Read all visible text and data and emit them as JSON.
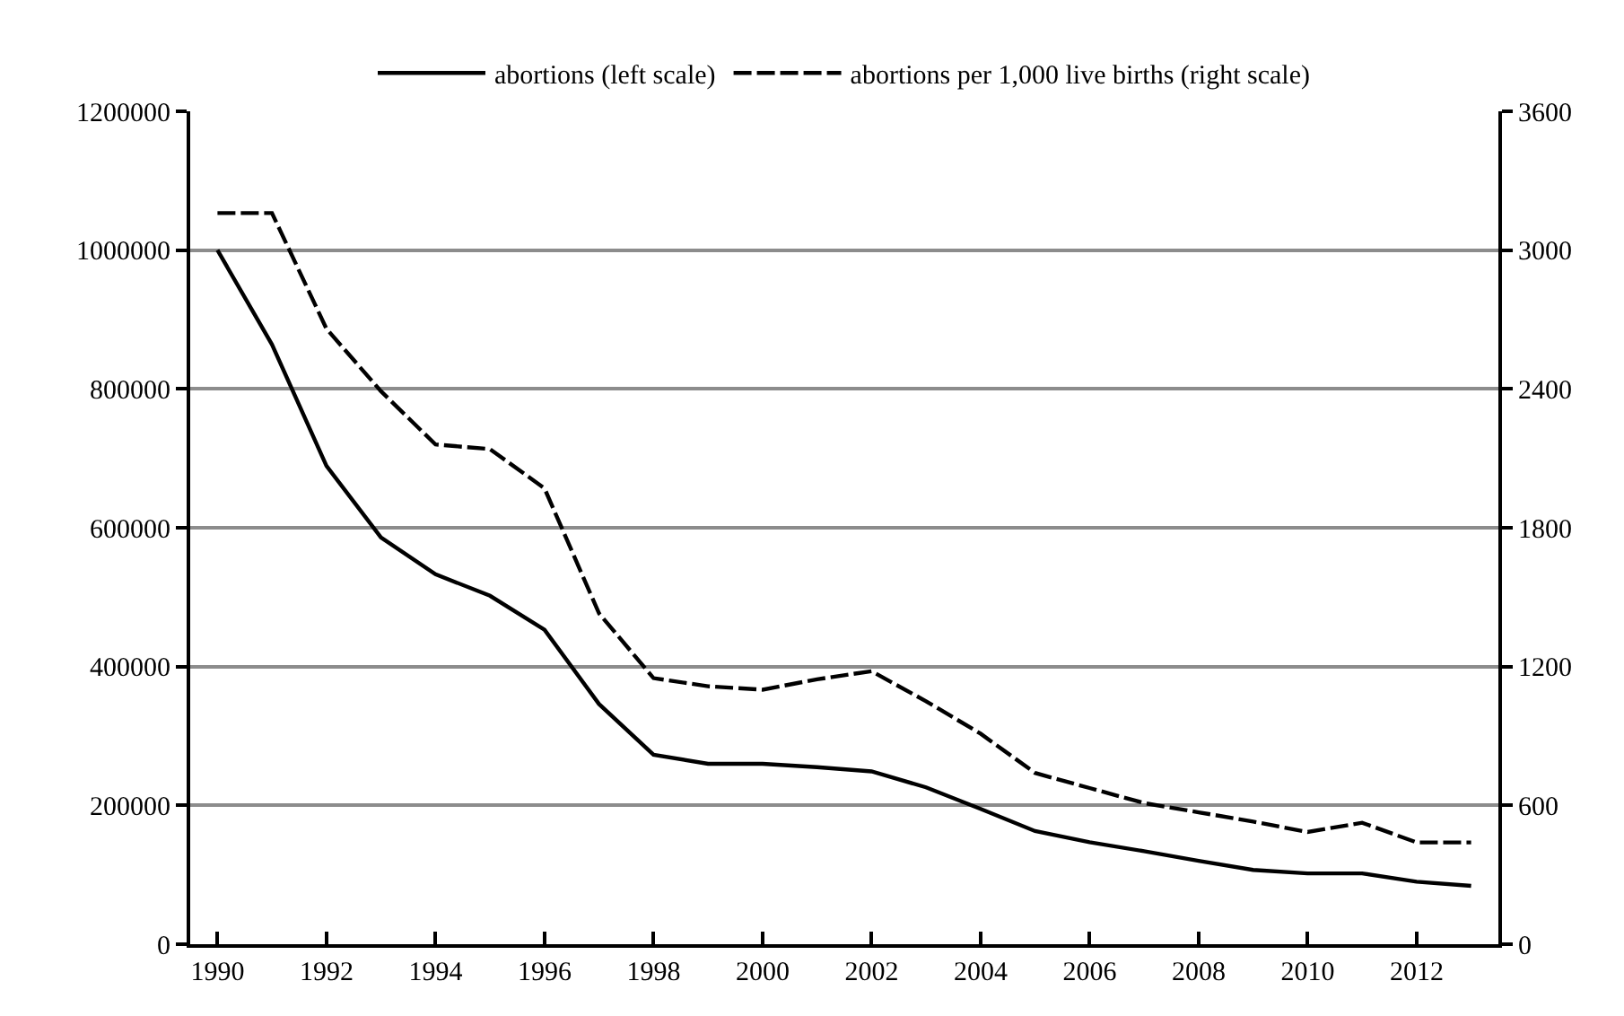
{
  "chart_data": {
    "type": "line",
    "x": [
      1990,
      1991,
      1992,
      1993,
      1994,
      1995,
      1996,
      1997,
      1998,
      1999,
      2000,
      2001,
      2002,
      2003,
      2004,
      2005,
      2006,
      2007,
      2008,
      2009,
      2010,
      2011,
      2012,
      2013
    ],
    "series": [
      {
        "name": "abortions (left scale)",
        "color": "#000000",
        "line_style": "solid",
        "values": [
          1000000,
          864000,
          689000,
          586000,
          533000,
          502000,
          453000,
          346000,
          273000,
          260000,
          260000,
          255000,
          249000,
          226000,
          195000,
          163000,
          147000,
          134000,
          120000,
          107000,
          102000,
          102000,
          90000,
          84000
        ]
      },
      {
        "name": "abortions per 1,000 live births (right scale)",
        "color": "#000000",
        "line_style": "dashed",
        "axis": "y2",
        "values": [
          3160,
          3160,
          2660,
          2390,
          2160,
          2140,
          1970,
          1430,
          1150,
          1115,
          1100,
          1145,
          1180,
          1050,
          910,
          740,
          675,
          610,
          570,
          530,
          485,
          525,
          440,
          440
        ]
      }
    ],
    "xlim": [
      1989.5,
      2013.5
    ],
    "xticks": [
      1990,
      1992,
      1994,
      1996,
      1998,
      2000,
      2002,
      2004,
      2006,
      2008,
      2010,
      2012
    ],
    "ylim": [
      0,
      1200000
    ],
    "yticks": [
      0,
      200000,
      400000,
      600000,
      800000,
      1000000,
      1200000
    ],
    "y2lim": [
      0,
      3600
    ],
    "y2ticks": [
      0,
      600,
      1200,
      1800,
      2400,
      3000,
      3600
    ],
    "grid": "y",
    "legend": "top",
    "marker": "none"
  }
}
